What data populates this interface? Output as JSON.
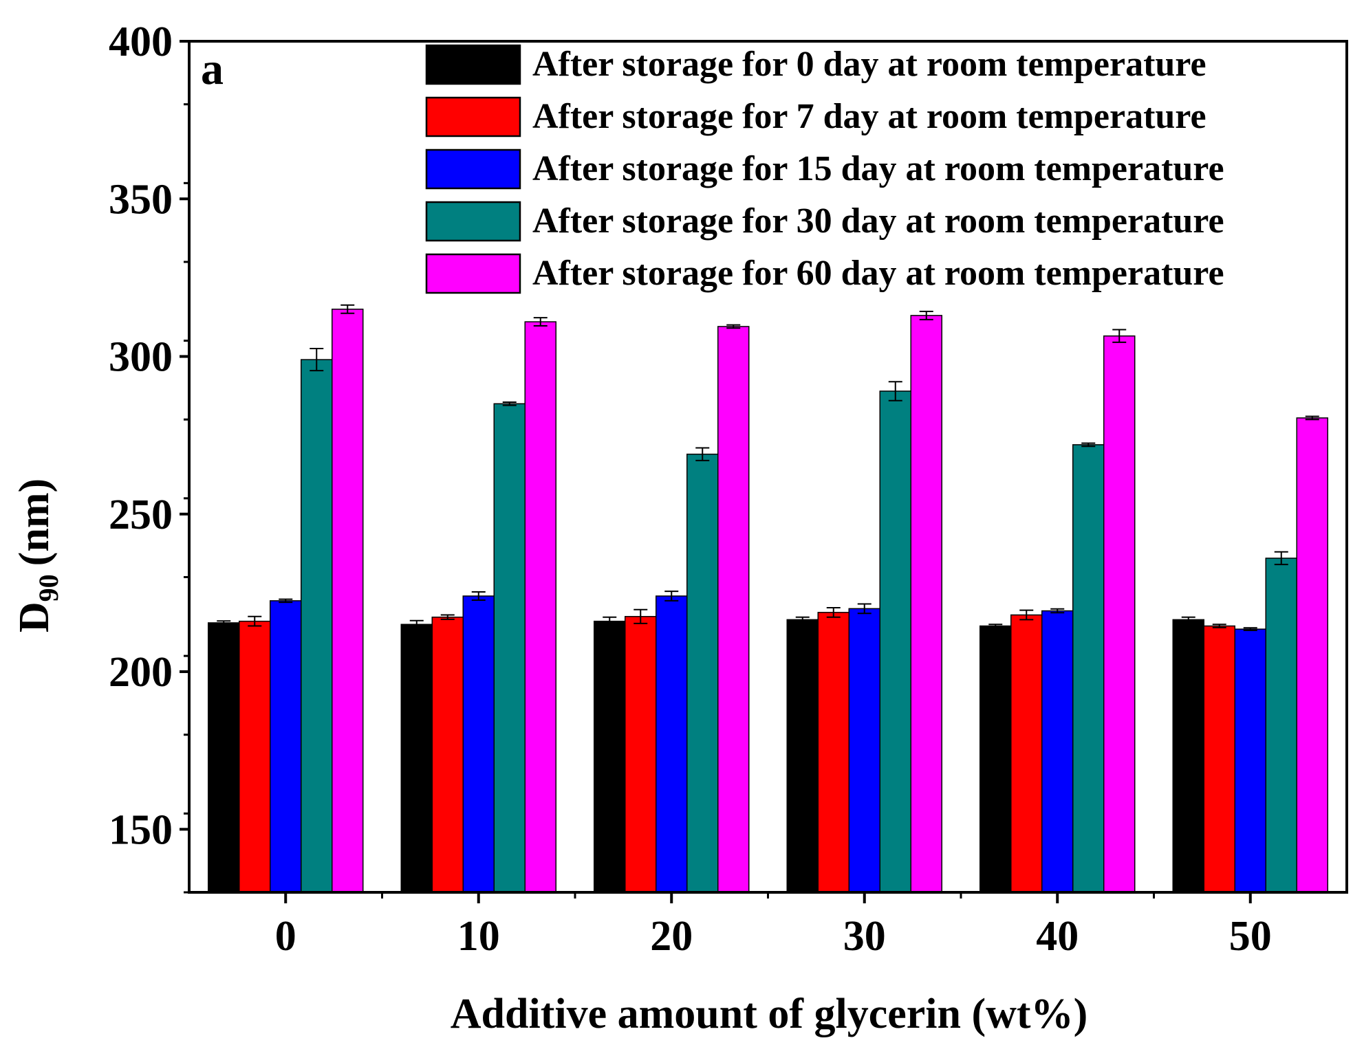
{
  "chart_data": {
    "type": "bar",
    "panel_label": "a",
    "title": "",
    "xlabel": "Additive amount of glycerin (wt%)",
    "ylabel": "D",
    "ylabel_subscript": "90",
    "ylabel_unit": "(nm)",
    "ylim": [
      130,
      400
    ],
    "yticks": [
      "150",
      "200",
      "250",
      "300",
      "350",
      "400"
    ],
    "categories": [
      "0",
      "10",
      "20",
      "30",
      "40",
      "50"
    ],
    "legend_position": "top-right",
    "series": [
      {
        "name": "After storage for 0 day at room temperature",
        "color": "#000000",
        "values": [
          215.5,
          215.0,
          216.0,
          216.5,
          214.5,
          216.5
        ],
        "errors": [
          0.6,
          1.2,
          1.3,
          0.8,
          0.5,
          0.8
        ]
      },
      {
        "name": "After storage for 7 day at room temperature",
        "color": "#ff0000",
        "values": [
          216.0,
          217.3,
          217.5,
          218.8,
          218.0,
          214.5
        ],
        "errors": [
          1.5,
          0.7,
          2.2,
          1.5,
          1.5,
          0.5
        ]
      },
      {
        "name": "After storage for 15 day at room temperature",
        "color": "#0000ff",
        "values": [
          222.5,
          224.0,
          224.0,
          220.0,
          219.3,
          213.5
        ],
        "errors": [
          0.5,
          1.3,
          1.5,
          1.5,
          0.6,
          0.4
        ]
      },
      {
        "name": "After storage for 30 day at room temperature",
        "color": "#008080",
        "values": [
          299.0,
          285.0,
          269.0,
          289.0,
          272.0,
          236.0
        ],
        "errors": [
          3.5,
          0.5,
          2.0,
          3.0,
          0.5,
          2.0
        ]
      },
      {
        "name": "After storage for 60 day at room temperature",
        "color": "#ff00ff",
        "values": [
          315.0,
          311.0,
          309.5,
          313.0,
          306.5,
          280.5
        ],
        "errors": [
          1.3,
          1.3,
          0.5,
          1.3,
          2.0,
          0.5
        ]
      }
    ]
  }
}
